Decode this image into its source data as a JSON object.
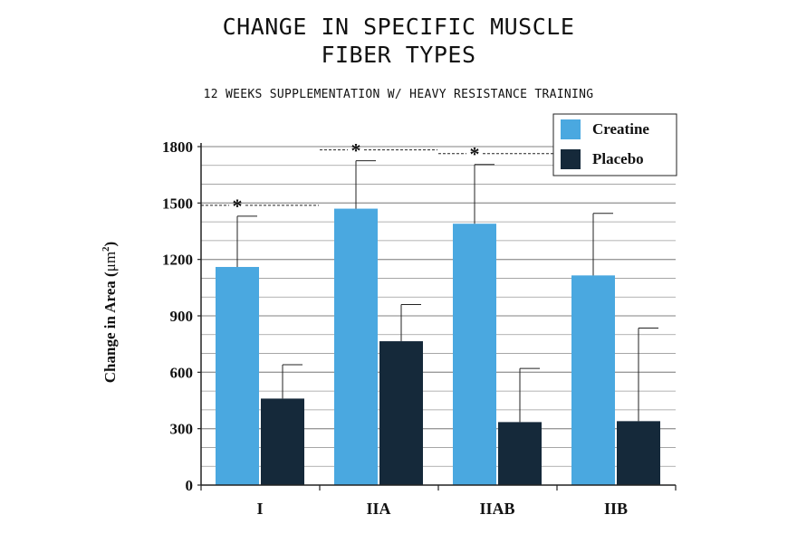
{
  "title_lines": [
    "CHANGE IN SPECIFIC MUSCLE",
    "FIBER TYPES"
  ],
  "subtitle": "12 WEEKS SUPPLEMENTATION W/ HEAVY RESISTANCE TRAINING",
  "colors": {
    "creatine": "#4aa8e0",
    "placebo": "#15293a",
    "axis": "#222222",
    "grid": "#9a9a9a"
  },
  "chart_data": {
    "type": "bar",
    "title": "CHANGE IN SPECIFIC MUSCLE FIBER TYPES",
    "subtitle": "12 WEEKS SUPPLEMENTATION W/ HEAVY RESISTANCE TRAINING",
    "categories": [
      "I",
      "IIA",
      "IIAB",
      "IIB"
    ],
    "series": [
      {
        "name": "Creatine",
        "values": [
          1160,
          1470,
          1390,
          1115
        ],
        "errors": [
          270,
          255,
          315,
          330
        ]
      },
      {
        "name": "Placebo",
        "values": [
          460,
          765,
          335,
          340
        ],
        "errors": [
          180,
          195,
          285,
          495
        ]
      }
    ],
    "significant": [
      "*",
      "*",
      "*",
      ""
    ],
    "ylabel_main": "Change in Area (",
    "ylabel_unit": "μm",
    "ylabel_sup": "2",
    "ylabel_close": ")",
    "ylim": [
      0,
      1800
    ],
    "yticks": [
      "0",
      "300",
      "600",
      "900",
      "1200",
      "1500",
      "1800"
    ],
    "grid": true,
    "legend": "top-right"
  }
}
